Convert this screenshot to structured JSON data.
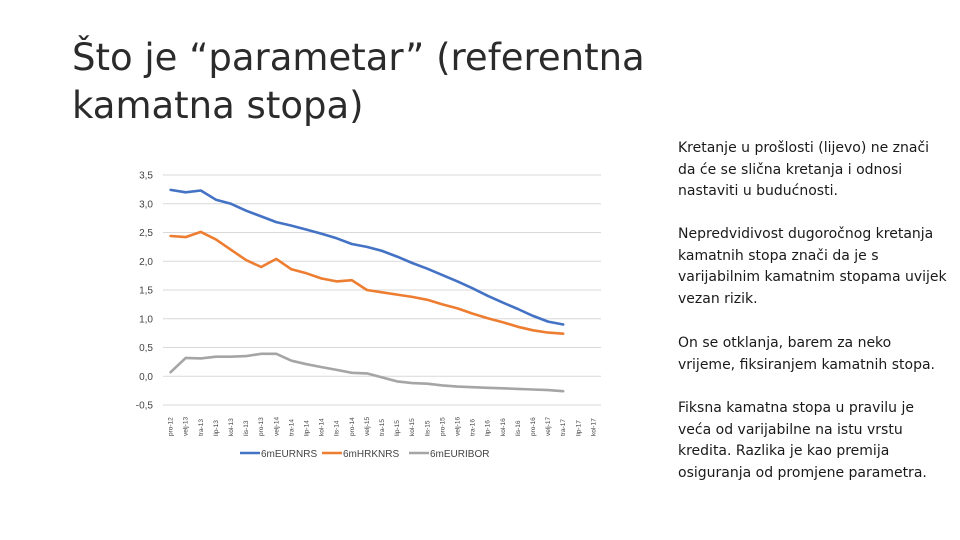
{
  "slide": {
    "title": "Što je “parametar” (referentna kamatna stopa)",
    "paragraphs": [
      "Kretanje u prošlosti (lijevo) ne znači da će se slična kretanja i odnosi nastaviti u budućnosti.",
      "Nepredvidivost dugoročnog kretanja kamatnih stopa znači da je s varijabilnim kamatnim stopama uvijek vezan rizik.",
      "On se otklanja, barem za neko vrijeme, fiksiranjem kamatnih stopa.",
      "Fiksna kamatna stopa u pravilu je veća od varijabilne na istu vrstu kredita. Razlika je kao premija osiguranja od promjene parametra."
    ]
  },
  "chart_data": {
    "type": "line",
    "ylim": [
      -0.5,
      3.5
    ],
    "yticks": [
      "3,5",
      "3,0",
      "2,5",
      "2,0",
      "1,5",
      "1,0",
      "0,5",
      "0,0",
      "-0,5"
    ],
    "categories": [
      "pro-12",
      "velj-13",
      "tra-13",
      "lip-13",
      "kol-13",
      "lis-13",
      "pro-13",
      "velj-14",
      "tra-14",
      "lip-14",
      "kol-14",
      "lis-14",
      "pro-14",
      "velj-15",
      "tra-15",
      "lip-15",
      "kol-15",
      "lis-15",
      "pro-15",
      "velj-16",
      "tra-16",
      "lip-16",
      "kol-16",
      "lis-16",
      "pro-16",
      "velj-17",
      "tra-17",
      "lip-17",
      "kol-17"
    ],
    "legend_position": "bottom",
    "series": [
      {
        "name": "6mEURNRS",
        "color": "#4472c4",
        "values": [
          3.24,
          3.2,
          3.23,
          3.07,
          3.0,
          2.88,
          2.78,
          2.68,
          2.62,
          2.55,
          2.48,
          2.4,
          2.3,
          2.25,
          2.18,
          2.08,
          1.97,
          1.87,
          1.76,
          1.65,
          1.53,
          1.4,
          1.28,
          1.17,
          1.05,
          0.95,
          0.9,
          null,
          null
        ]
      },
      {
        "name": "6mHRKNRS",
        "color": "#ed7d31",
        "values": [
          2.44,
          2.42,
          2.51,
          2.38,
          2.2,
          2.02,
          1.9,
          2.04,
          1.86,
          1.79,
          1.7,
          1.65,
          1.67,
          1.5,
          1.46,
          1.42,
          1.38,
          1.33,
          1.25,
          1.18,
          1.09,
          1.01,
          0.94,
          0.86,
          0.8,
          0.76,
          0.74,
          null,
          null
        ]
      },
      {
        "name": "6mEURIBOR",
        "color": "#a5a5a5",
        "values": [
          0.07,
          0.32,
          0.31,
          0.34,
          0.34,
          0.35,
          0.39,
          0.39,
          0.27,
          0.21,
          0.16,
          0.11,
          0.06,
          0.05,
          -0.02,
          -0.09,
          -0.12,
          -0.13,
          -0.16,
          -0.18,
          -0.19,
          -0.2,
          -0.21,
          -0.22,
          -0.23,
          -0.24,
          -0.26,
          null,
          null
        ]
      }
    ]
  }
}
